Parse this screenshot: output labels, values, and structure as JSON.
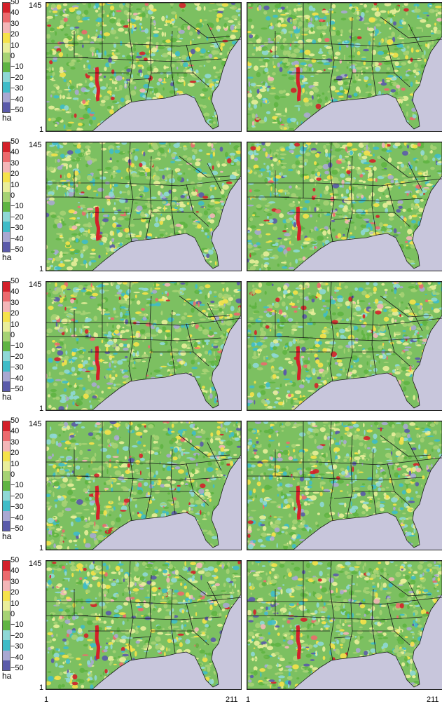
{
  "colorbar": {
    "ticks": [
      "50",
      "40",
      "30",
      "20",
      "10",
      "0",
      "−10",
      "−20",
      "−30",
      "−40",
      "−50"
    ],
    "unit": "ha",
    "colors": [
      "#d4202a",
      "#ec6a6e",
      "#f4b6b8",
      "#f6e24a",
      "#e9ee9a",
      "#a6d274",
      "#5fb443",
      "#8ed8d6",
      "#3fbcc8",
      "#a9a8d2",
      "#5a5aaa"
    ]
  },
  "axes": {
    "y_top": "145",
    "y_bottom": "1",
    "x_left": "1",
    "x_right": "211"
  },
  "colors": {
    "ocean": "#c8c6dc",
    "land": "#7cc061",
    "border": "#1a1a1a"
  },
  "chart_data": [
    {
      "type": "heatmap",
      "row": 1,
      "column": "left",
      "x_range": [
        1,
        211
      ],
      "y_range": [
        1,
        145
      ],
      "zlim": [
        -50,
        50
      ],
      "colorbar_unit": "ha"
    },
    {
      "type": "heatmap",
      "row": 1,
      "column": "right",
      "x_range": [
        1,
        211
      ],
      "y_range": [
        1,
        145
      ],
      "zlim": [
        -50,
        50
      ]
    },
    {
      "type": "heatmap",
      "row": 2,
      "column": "left",
      "x_range": [
        1,
        211
      ],
      "y_range": [
        1,
        145
      ],
      "zlim": [
        -50,
        50
      ],
      "colorbar_unit": "ha"
    },
    {
      "type": "heatmap",
      "row": 2,
      "column": "right",
      "x_range": [
        1,
        211
      ],
      "y_range": [
        1,
        145
      ],
      "zlim": [
        -50,
        50
      ]
    },
    {
      "type": "heatmap",
      "row": 3,
      "column": "left",
      "x_range": [
        1,
        211
      ],
      "y_range": [
        1,
        145
      ],
      "zlim": [
        -50,
        50
      ],
      "colorbar_unit": "ha"
    },
    {
      "type": "heatmap",
      "row": 3,
      "column": "right",
      "x_range": [
        1,
        211
      ],
      "y_range": [
        1,
        145
      ],
      "zlim": [
        -50,
        50
      ]
    },
    {
      "type": "heatmap",
      "row": 4,
      "column": "left",
      "x_range": [
        1,
        211
      ],
      "y_range": [
        1,
        145
      ],
      "zlim": [
        -50,
        50
      ],
      "colorbar_unit": "ha"
    },
    {
      "type": "heatmap",
      "row": 4,
      "column": "right",
      "x_range": [
        1,
        211
      ],
      "y_range": [
        1,
        145
      ],
      "zlim": [
        -50,
        50
      ]
    },
    {
      "type": "heatmap",
      "row": 5,
      "column": "left",
      "x_range": [
        1,
        211
      ],
      "y_range": [
        1,
        145
      ],
      "zlim": [
        -50,
        50
      ],
      "colorbar_unit": "ha"
    },
    {
      "type": "heatmap",
      "row": 5,
      "column": "right",
      "x_range": [
        1,
        211
      ],
      "y_range": [
        1,
        145
      ],
      "zlim": [
        -50,
        50
      ]
    }
  ]
}
